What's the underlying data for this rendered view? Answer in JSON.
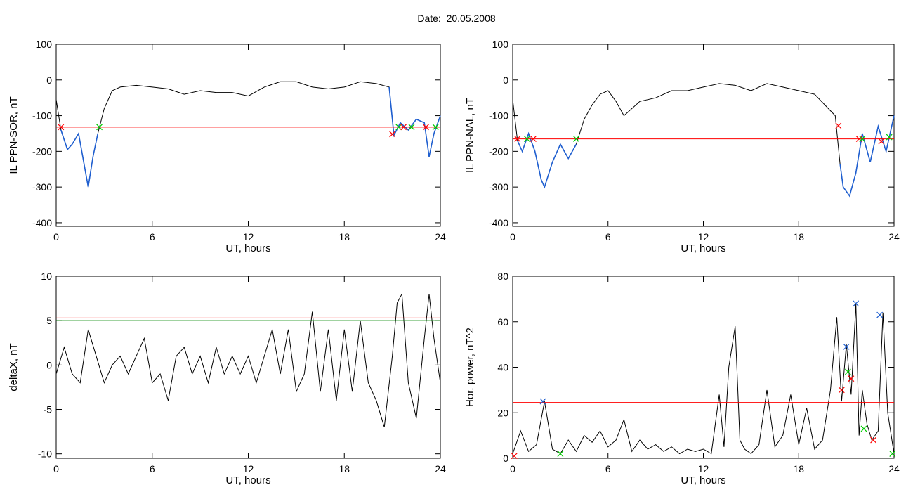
{
  "page": {
    "date_label": "Date:",
    "date_value": "20.05.2008"
  },
  "chart_data": [
    {
      "id": "sor",
      "type": "line",
      "xlabel": "UT, hours",
      "ylabel": "IL PPN-SOR, nT",
      "xlim": [
        0,
        24
      ],
      "ylim": [
        -410,
        100
      ],
      "xticks": [
        0,
        6,
        12,
        18,
        24
      ],
      "yticks": [
        100,
        0,
        -100,
        -200,
        -300,
        -400
      ],
      "x": [
        0,
        0.3,
        0.7,
        1.0,
        1.4,
        1.8,
        2.0,
        2.3,
        2.6,
        3.0,
        3.5,
        4.0,
        5.0,
        6.0,
        7.0,
        8.0,
        9.0,
        10.0,
        11.0,
        12.0,
        13.0,
        14.0,
        15.0,
        16.0,
        17.0,
        18.0,
        19.0,
        20.0,
        20.8,
        21.1,
        21.5,
        22.0,
        22.5,
        23.0,
        23.3,
        23.6,
        24.0
      ],
      "series": [
        {
          "color": "#000000",
          "values": [
            -55,
            -140,
            -195,
            -180,
            -150,
            -250,
            -300,
            -215,
            -150,
            -80,
            -30,
            -20,
            -15,
            -20,
            -25,
            -40,
            -30,
            -35,
            -35,
            -45,
            -20,
            -5,
            -5,
            -20,
            -25,
            -20,
            -5,
            -10,
            -20,
            -155,
            -120,
            -140,
            -110,
            -120,
            -215,
            -150,
            -100
          ]
        }
      ],
      "highlight": {
        "color": "#1f5fd0",
        "ranges": [
          [
            0.3,
            2.7
          ],
          [
            20.8,
            24.0
          ]
        ]
      },
      "threshold": {
        "color": "#ff0000",
        "value": -132
      },
      "markers": [
        {
          "x": 0.3,
          "y": -132,
          "color": "#ff0000"
        },
        {
          "x": 2.7,
          "y": -132,
          "color": "#00cc00"
        },
        {
          "x": 21.0,
          "y": -152,
          "color": "#ff0000"
        },
        {
          "x": 21.4,
          "y": -132,
          "color": "#00cc00"
        },
        {
          "x": 21.7,
          "y": -132,
          "color": "#ff0000"
        },
        {
          "x": 22.2,
          "y": -132,
          "color": "#00cc00"
        },
        {
          "x": 23.1,
          "y": -132,
          "color": "#ff0000"
        },
        {
          "x": 23.7,
          "y": -132,
          "color": "#00cc00"
        }
      ]
    },
    {
      "id": "nal",
      "type": "line",
      "xlabel": "UT, hours",
      "ylabel": "IL PPN-NAL, nT",
      "xlim": [
        0,
        24
      ],
      "ylim": [
        -410,
        100
      ],
      "xticks": [
        0,
        6,
        12,
        18,
        24
      ],
      "yticks": [
        100,
        0,
        -100,
        -200,
        -300,
        -400
      ],
      "x": [
        0,
        0.3,
        0.6,
        1.0,
        1.4,
        1.8,
        2.0,
        2.5,
        3.0,
        3.5,
        4.0,
        4.5,
        5.0,
        5.5,
        6.0,
        6.5,
        7.0,
        8.0,
        9.0,
        10.0,
        11.0,
        12.0,
        13.0,
        14.0,
        15.0,
        16.0,
        17.0,
        18.0,
        19.0,
        20.3,
        20.6,
        20.8,
        21.2,
        21.6,
        22.0,
        22.5,
        23.0,
        23.5,
        24.0
      ],
      "series": [
        {
          "color": "#000000",
          "values": [
            -55,
            -170,
            -200,
            -150,
            -200,
            -280,
            -300,
            -230,
            -180,
            -220,
            -180,
            -110,
            -70,
            -40,
            -30,
            -60,
            -100,
            -60,
            -50,
            -30,
            -30,
            -20,
            -10,
            -15,
            -30,
            -10,
            -20,
            -30,
            -40,
            -100,
            -235,
            -300,
            -325,
            -260,
            -150,
            -230,
            -130,
            -200,
            -100
          ]
        }
      ],
      "highlight": {
        "color": "#1f5fd0",
        "ranges": [
          [
            0.3,
            4.0
          ],
          [
            20.6,
            24.0
          ]
        ]
      },
      "threshold": {
        "color": "#ff0000",
        "value": -165
      },
      "markers": [
        {
          "x": 0.3,
          "y": -165,
          "color": "#ff0000"
        },
        {
          "x": 0.9,
          "y": -165,
          "color": "#00cc00"
        },
        {
          "x": 1.3,
          "y": -165,
          "color": "#ff0000"
        },
        {
          "x": 4.0,
          "y": -165,
          "color": "#00cc00"
        },
        {
          "x": 20.5,
          "y": -128,
          "color": "#ff0000"
        },
        {
          "x": 21.8,
          "y": -165,
          "color": "#ff0000"
        },
        {
          "x": 22.0,
          "y": -165,
          "color": "#00cc00"
        },
        {
          "x": 23.2,
          "y": -172,
          "color": "#ff0000"
        },
        {
          "x": 23.7,
          "y": -160,
          "color": "#00cc00"
        }
      ]
    },
    {
      "id": "deltax",
      "type": "line",
      "xlabel": "UT, hours",
      "ylabel": "deltaX, nT",
      "xlim": [
        0,
        24
      ],
      "ylim": [
        -10.5,
        10
      ],
      "xticks": [
        0,
        6,
        12,
        18,
        24
      ],
      "yticks": [
        10,
        5,
        0,
        -5,
        -10
      ],
      "x": [
        0,
        0.5,
        1.0,
        1.5,
        2.0,
        2.5,
        3.0,
        3.5,
        4.0,
        4.5,
        5.0,
        5.5,
        6.0,
        6.5,
        7.0,
        7.5,
        8.0,
        8.5,
        9.0,
        9.5,
        10.0,
        10.5,
        11.0,
        11.5,
        12.0,
        12.5,
        13.0,
        13.5,
        14.0,
        14.5,
        15.0,
        15.5,
        16.0,
        16.5,
        17.0,
        17.5,
        18.0,
        18.5,
        19.0,
        19.5,
        20.0,
        20.5,
        21.0,
        21.3,
        21.6,
        22.0,
        22.5,
        23.0,
        23.3,
        23.6,
        24.0
      ],
      "series": [
        {
          "color": "#000000",
          "values": [
            -1,
            2,
            -1,
            -2,
            4,
            1,
            -2,
            0,
            1,
            -1,
            1,
            3,
            -2,
            -1,
            -4,
            1,
            2,
            -1,
            1,
            -2,
            2,
            -1,
            1,
            -1,
            1,
            -2,
            1,
            4,
            -1,
            4,
            -3,
            -1,
            6,
            -3,
            4,
            -4,
            4,
            -3,
            5,
            -2,
            -4,
            -7,
            1,
            7,
            8,
            -2,
            -6,
            3,
            8,
            3,
            -2
          ]
        }
      ],
      "thresholds": [
        {
          "color": "#ff0000",
          "value": 5.3
        },
        {
          "color": "#008800",
          "value": 5.0
        }
      ]
    },
    {
      "id": "power",
      "type": "line",
      "xlabel": "UT, hours",
      "ylabel": "Hor. power, nT^2",
      "xlim": [
        0,
        24
      ],
      "ylim": [
        0,
        80
      ],
      "xticks": [
        0,
        6,
        12,
        18,
        24
      ],
      "yticks": [
        80,
        60,
        40,
        20,
        0
      ],
      "x": [
        0,
        0.5,
        1.0,
        1.5,
        2.0,
        2.5,
        3.0,
        3.5,
        4.0,
        4.5,
        5.0,
        5.5,
        6.0,
        6.5,
        7.0,
        7.5,
        8.0,
        8.5,
        9.0,
        9.5,
        10.0,
        10.5,
        11.0,
        11.5,
        12.0,
        12.5,
        13.0,
        13.3,
        13.6,
        14.0,
        14.3,
        14.6,
        15.0,
        15.5,
        16.0,
        16.5,
        17.0,
        17.5,
        18.0,
        18.5,
        19.0,
        19.5,
        20.0,
        20.4,
        20.7,
        21.0,
        21.3,
        21.6,
        21.8,
        22.0,
        22.3,
        22.6,
        23.0,
        23.3,
        23.6,
        24.0
      ],
      "series": [
        {
          "color": "#000000",
          "values": [
            2,
            12,
            3,
            6,
            25,
            4,
            2,
            8,
            3,
            10,
            7,
            12,
            5,
            8,
            17,
            3,
            8,
            4,
            6,
            3,
            5,
            2,
            4,
            3,
            4,
            2,
            28,
            5,
            40,
            58,
            8,
            4,
            2,
            6,
            30,
            5,
            10,
            28,
            6,
            22,
            4,
            8,
            30,
            62,
            25,
            50,
            28,
            68,
            10,
            30,
            15,
            8,
            12,
            64,
            20,
            2
          ]
        }
      ],
      "threshold": {
        "color": "#ff0000",
        "value": 24.5
      },
      "markers": [
        {
          "x": 0.1,
          "y": 1,
          "color": "#ff0000"
        },
        {
          "x": 1.9,
          "y": 25,
          "color": "#1f5fd0"
        },
        {
          "x": 3.0,
          "y": 2,
          "color": "#00cc00"
        },
        {
          "x": 20.7,
          "y": 30,
          "color": "#ff0000"
        },
        {
          "x": 21.0,
          "y": 49,
          "color": "#1f5fd0"
        },
        {
          "x": 21.1,
          "y": 38,
          "color": "#00cc00"
        },
        {
          "x": 21.3,
          "y": 35,
          "color": "#ff0000"
        },
        {
          "x": 21.6,
          "y": 68,
          "color": "#1f5fd0"
        },
        {
          "x": 22.1,
          "y": 13,
          "color": "#00cc00"
        },
        {
          "x": 22.7,
          "y": 8,
          "color": "#ff0000"
        },
        {
          "x": 23.1,
          "y": 63,
          "color": "#1f5fd0"
        },
        {
          "x": 23.9,
          "y": 2,
          "color": "#00cc00"
        }
      ]
    }
  ]
}
